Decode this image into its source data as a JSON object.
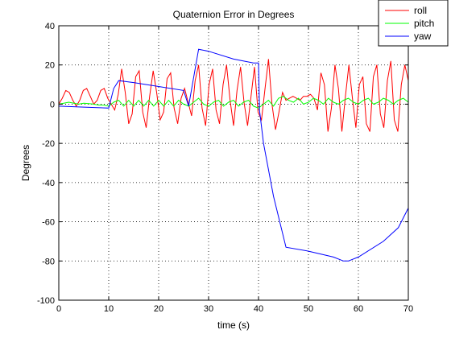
{
  "chart_data": {
    "type": "line",
    "title": "Quaternion Error in Degrees",
    "xlabel": "time (s)",
    "ylabel": "Degrees",
    "xlim": [
      0,
      70
    ],
    "ylim": [
      -100,
      40
    ],
    "xticks": [
      0,
      10,
      20,
      30,
      40,
      50,
      60,
      70
    ],
    "yticks": [
      40,
      20,
      0,
      -20,
      -40,
      -60,
      -80,
      -100
    ],
    "xtick_labels": [
      "0",
      "10",
      "20",
      "30",
      "40",
      "50",
      "60",
      "70"
    ],
    "ytick_labels": [
      "40",
      "20",
      "0",
      "-20",
      "-40",
      "-60",
      "-80",
      "-100"
    ],
    "grid": true,
    "legend_position": "top-right",
    "series": [
      {
        "name": "roll",
        "color": "#ff0000",
        "x": [
          0,
          0.7,
          1.4,
          2.1,
          2.8,
          3.5,
          4.2,
          4.9,
          5.6,
          6.3,
          7.0,
          7.7,
          8.4,
          9.1,
          9.8,
          10.5,
          11.2,
          11.9,
          12.6,
          13.3,
          14.0,
          14.7,
          15.4,
          16.1,
          16.8,
          17.5,
          18.2,
          18.9,
          19.6,
          20.3,
          21.0,
          21.7,
          22.4,
          23.1,
          23.8,
          24.5,
          25.2,
          25.9,
          26.6,
          27.3,
          28.0,
          28.7,
          29.4,
          30.1,
          30.8,
          31.5,
          32.2,
          32.9,
          33.6,
          34.3,
          35.0,
          35.7,
          36.4,
          37.1,
          37.8,
          38.5,
          39.2,
          39.9,
          40.6,
          41.3,
          42.0,
          42.7,
          43.4,
          44.1,
          44.8,
          45.5,
          46.2,
          46.9,
          47.6,
          48.3,
          49.0,
          49.7,
          50.4,
          51.1,
          51.8,
          52.5,
          53.2,
          53.9,
          54.6,
          55.3,
          56.0,
          56.7,
          57.4,
          58.1,
          58.8,
          59.5,
          60.2,
          60.9,
          61.6,
          62.3,
          63.0,
          63.7,
          64.4,
          65.1,
          65.8,
          66.5,
          67.2,
          67.9,
          68.6,
          69.3,
          70.0
        ],
        "y": [
          0,
          3,
          7,
          6,
          2,
          -1,
          2,
          7,
          8,
          4,
          0,
          2,
          7,
          8,
          3,
          0,
          -3,
          5,
          18,
          6,
          -10,
          -5,
          14,
          17,
          -4,
          -12,
          4,
          17,
          6,
          -8,
          -4,
          13,
          16,
          -2,
          -10,
          3,
          8,
          1,
          -6,
          12,
          20,
          -2,
          -11,
          10,
          18,
          -3,
          -10,
          10,
          20,
          2,
          -11,
          7,
          19,
          1,
          -11,
          4,
          19,
          -4,
          -8,
          8,
          23,
          0,
          -13,
          -4,
          6,
          2,
          3,
          4,
          3,
          2,
          4,
          4,
          5,
          3,
          -3,
          16,
          10,
          -14,
          -2,
          20,
          8,
          -14,
          4,
          20,
          3,
          -12,
          10,
          14,
          -10,
          -14,
          14,
          20,
          -5,
          -12,
          12,
          22,
          -8,
          -14,
          10,
          20,
          12
        ]
      },
      {
        "name": "pitch",
        "color": "#00ff00",
        "x": [
          0,
          1,
          2,
          3,
          4,
          5,
          6,
          7,
          8,
          9,
          10,
          11,
          12,
          13,
          14,
          15,
          16,
          17,
          18,
          19,
          20,
          21,
          22,
          23,
          24,
          25,
          26,
          27,
          28,
          29,
          30,
          31,
          32,
          33,
          34,
          35,
          36,
          37,
          38,
          39,
          40,
          41,
          42,
          43,
          44,
          45,
          46,
          47,
          48,
          49,
          50,
          51,
          52,
          53,
          54,
          55,
          56,
          57,
          58,
          59,
          60,
          61,
          62,
          63,
          64,
          65,
          66,
          67,
          68,
          69,
          70
        ],
        "y": [
          0,
          0.5,
          1,
          0.5,
          0,
          0.5,
          0.3,
          0,
          -0.5,
          -0.5,
          -1,
          1,
          2,
          -1,
          2,
          -1,
          2,
          -1,
          2,
          -1,
          2,
          -1,
          2,
          -1,
          2,
          0,
          -1,
          1,
          3,
          0,
          -1,
          1,
          2,
          -1,
          1,
          2,
          -1,
          1,
          2,
          -1,
          -2,
          0,
          2,
          -1,
          3,
          4,
          2,
          1,
          3,
          0,
          1,
          3,
          2,
          0,
          3,
          1,
          0,
          2,
          3,
          1,
          0,
          2,
          3,
          0,
          1,
          3,
          2,
          0,
          2,
          3,
          1
        ]
      },
      {
        "name": "yaw",
        "color": "#0000ff",
        "x": [
          0,
          5,
          10,
          11,
          12,
          15,
          20,
          25,
          26,
          28,
          30,
          35,
          39,
          40,
          40.2,
          41,
          43,
          45.5,
          50,
          55,
          57,
          58,
          60,
          65,
          68,
          70
        ],
        "y": [
          -1,
          -1.5,
          -2,
          8,
          12,
          11,
          9,
          7,
          -1,
          28,
          27,
          23,
          21,
          21,
          -3,
          -20,
          -47,
          -73,
          -75,
          -78,
          -80,
          -80,
          -78,
          -70,
          -63,
          -53
        ]
      }
    ]
  }
}
